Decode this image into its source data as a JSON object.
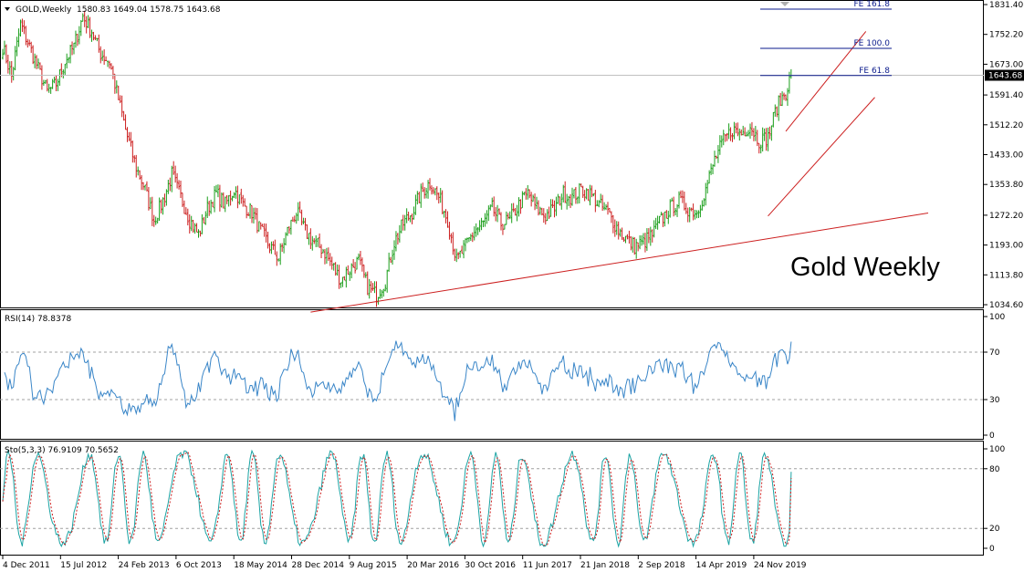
{
  "window": {
    "symbol_title": "GOLD,Weekly",
    "ohlc": "1580.83 1649.04 1578.75 1643.68",
    "watermark": "Gold Weekly"
  },
  "colors": {
    "bull": "#1a9e1a",
    "bear": "#cc1f1f",
    "trend": "#cc1f1f",
    "fib": "#0a1a8c",
    "rsi": "#3a86c8",
    "sto_main": "#1aa3a3",
    "sto_signal": "#cc1f1f",
    "grid": "#a0a0a0"
  },
  "price_axis": {
    "ticks": [
      "1831.40",
      "1752.20",
      "1673.00",
      "1591.40",
      "1512.20",
      "1433.00",
      "1353.80",
      "1272.20",
      "1193.00",
      "1113.80",
      "1034.60"
    ],
    "current_price": "1643.68"
  },
  "fib_levels": [
    {
      "label": "FE 161.8",
      "value": 1831.4
    },
    {
      "label": "FE 100.0",
      "value": 1715.0
    },
    {
      "label": "FE 61.8",
      "value": 1643.0
    }
  ],
  "rsi_panel": {
    "title": "RSI(14) 78.8378",
    "ticks": [
      "100",
      "70",
      "30",
      "0"
    ]
  },
  "sto_panel": {
    "title": "Sto(5,3,3) 76.9109 70.5652",
    "ticks": [
      "100",
      "80",
      "20",
      "0"
    ]
  },
  "date_axis": [
    "4 Dec 2011",
    "15 Jul 2012",
    "24 Feb 2013",
    "6 Oct 2013",
    "18 May 2014",
    "28 Dec 2014",
    "9 Aug 2015",
    "20 Mar 2016",
    "30 Oct 2016",
    "11 Jun 2017",
    "21 Jan 2018",
    "2 Sep 2018",
    "14 Apr 2019",
    "24 Nov 2019"
  ],
  "chart_data": {
    "type": "candlestick",
    "price_anchors": [
      [
        0,
        1720
      ],
      [
        5,
        1640
      ],
      [
        10,
        1780
      ],
      [
        15,
        1720
      ],
      [
        20,
        1660
      ],
      [
        25,
        1600
      ],
      [
        30,
        1620
      ],
      [
        35,
        1680
      ],
      [
        40,
        1720
      ],
      [
        45,
        1800
      ],
      [
        50,
        1760
      ],
      [
        55,
        1700
      ],
      [
        60,
        1680
      ],
      [
        65,
        1580
      ],
      [
        70,
        1480
      ],
      [
        75,
        1400
      ],
      [
        80,
        1340
      ],
      [
        85,
        1260
      ],
      [
        90,
        1310
      ],
      [
        95,
        1380
      ],
      [
        100,
        1320
      ],
      [
        105,
        1260
      ],
      [
        110,
        1220
      ],
      [
        115,
        1290
      ],
      [
        120,
        1330
      ],
      [
        125,
        1300
      ],
      [
        130,
        1340
      ],
      [
        135,
        1300
      ],
      [
        140,
        1280
      ],
      [
        145,
        1230
      ],
      [
        150,
        1190
      ],
      [
        155,
        1160
      ],
      [
        160,
        1230
      ],
      [
        165,
        1280
      ],
      [
        170,
        1230
      ],
      [
        175,
        1200
      ],
      [
        180,
        1180
      ],
      [
        185,
        1140
      ],
      [
        190,
        1100
      ],
      [
        195,
        1130
      ],
      [
        200,
        1150
      ],
      [
        205,
        1080
      ],
      [
        210,
        1060
      ],
      [
        215,
        1100
      ],
      [
        220,
        1200
      ],
      [
        225,
        1250
      ],
      [
        230,
        1280
      ],
      [
        235,
        1330
      ],
      [
        240,
        1360
      ],
      [
        245,
        1320
      ],
      [
        250,
        1260
      ],
      [
        255,
        1150
      ],
      [
        260,
        1190
      ],
      [
        265,
        1230
      ],
      [
        270,
        1250
      ],
      [
        275,
        1290
      ],
      [
        280,
        1250
      ],
      [
        285,
        1260
      ],
      [
        290,
        1300
      ],
      [
        295,
        1330
      ],
      [
        300,
        1290
      ],
      [
        305,
        1270
      ],
      [
        310,
        1290
      ],
      [
        315,
        1330
      ],
      [
        320,
        1320
      ],
      [
        325,
        1340
      ],
      [
        330,
        1330
      ],
      [
        335,
        1300
      ],
      [
        340,
        1280
      ],
      [
        345,
        1240
      ],
      [
        350,
        1210
      ],
      [
        355,
        1190
      ],
      [
        360,
        1200
      ],
      [
        365,
        1220
      ],
      [
        370,
        1260
      ],
      [
        375,
        1290
      ],
      [
        380,
        1310
      ],
      [
        385,
        1290
      ],
      [
        390,
        1280
      ],
      [
        395,
        1340
      ],
      [
        400,
        1420
      ],
      [
        405,
        1470
      ],
      [
        410,
        1500
      ],
      [
        415,
        1490
      ],
      [
        420,
        1510
      ],
      [
        425,
        1470
      ],
      [
        430,
        1480
      ],
      [
        435,
        1560
      ],
      [
        440,
        1600
      ],
      [
        443,
        1643.68
      ]
    ],
    "price_range": [
      1034.6,
      1831.4
    ],
    "trendlines": [
      {
        "name": "support",
        "from": [
          173,
          1015
        ],
        "to": [
          520,
          1278
        ]
      },
      {
        "name": "channel-upper",
        "from": [
          440,
          1495
        ],
        "to": [
          485,
          1760
        ]
      },
      {
        "name": "channel-lower",
        "from": [
          430,
          1270
        ],
        "to": [
          490,
          1585
        ]
      }
    ],
    "rsi": {
      "range": [
        0,
        100
      ],
      "levels": [
        70,
        30
      ],
      "last": 78.8378
    },
    "stochastic": {
      "range": [
        0,
        100
      ],
      "levels": [
        80,
        20
      ],
      "main_last": 76.9109,
      "signal_last": 70.5652
    }
  }
}
